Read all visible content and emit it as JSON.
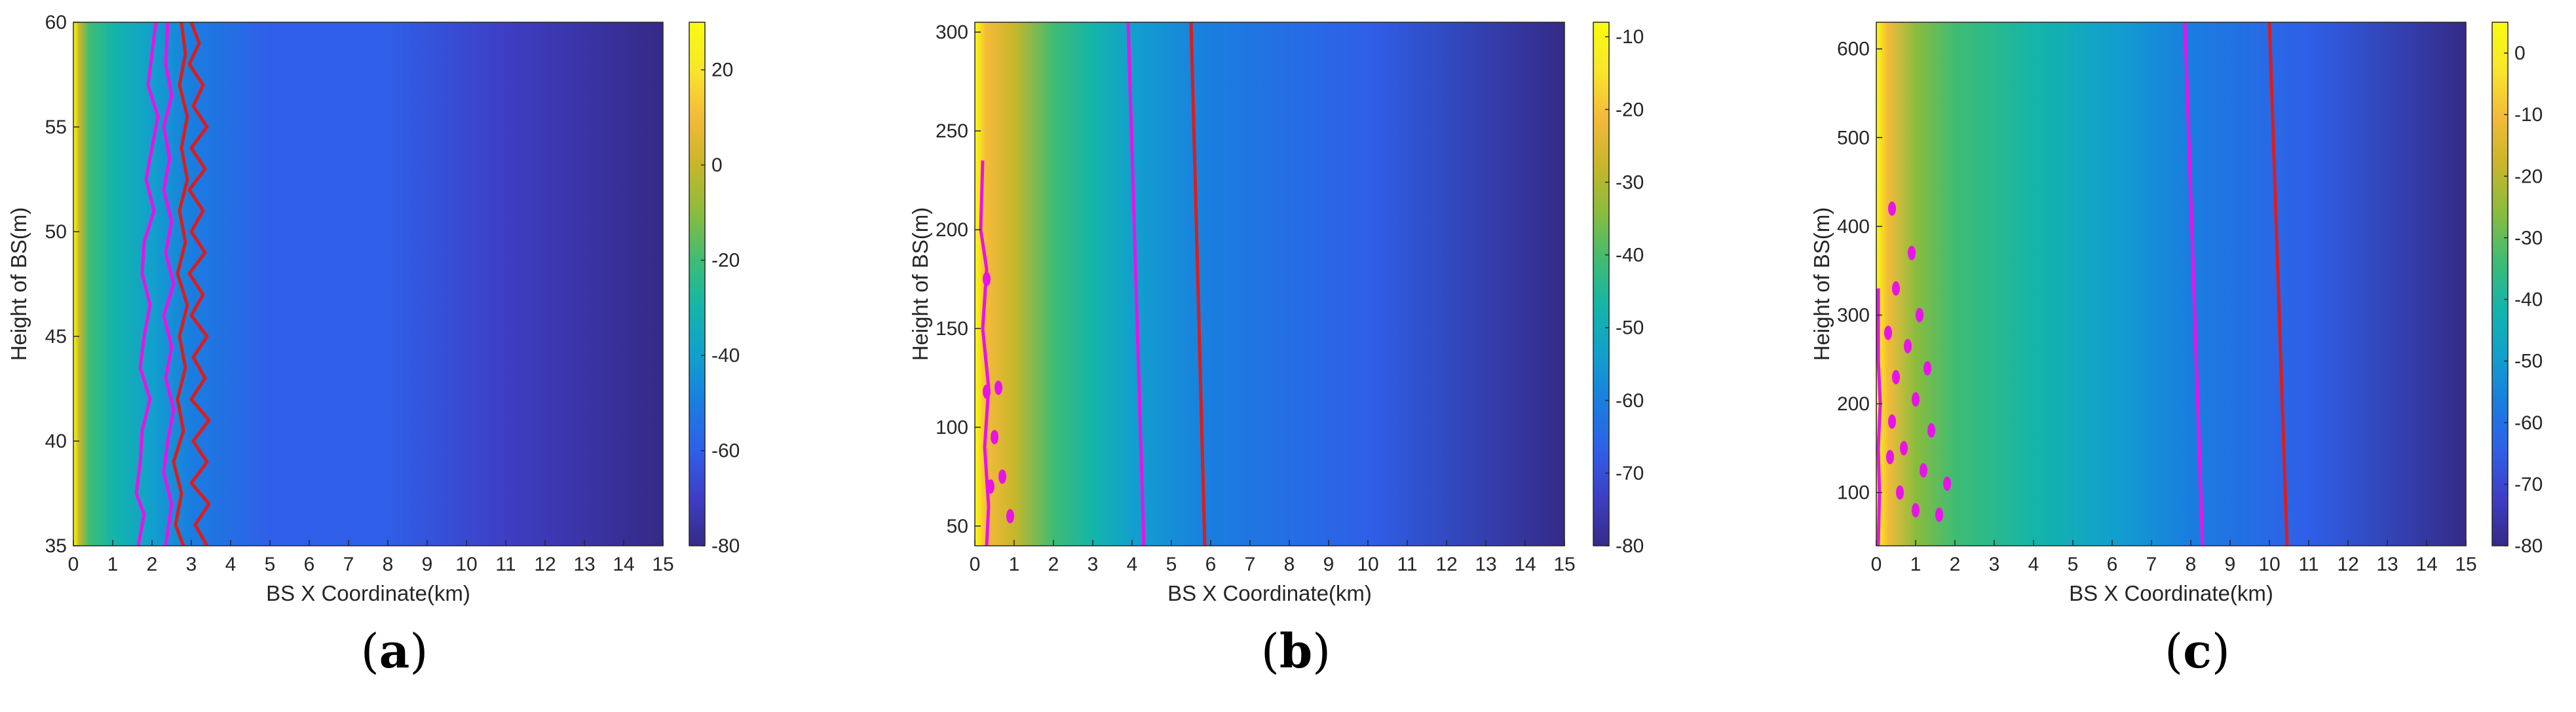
{
  "panels": [
    {
      "caption": "(a)",
      "caption_letter": "a",
      "chart_data": {
        "type": "heatmap",
        "xlabel": "BS X Coordinate(km)",
        "ylabel": "Height of BS(m)",
        "xlim": [
          0,
          15
        ],
        "ylim": [
          35,
          60
        ],
        "xticks": [
          0,
          1,
          2,
          3,
          4,
          5,
          6,
          7,
          8,
          9,
          10,
          11,
          12,
          13,
          14,
          15
        ],
        "yticks": [
          35,
          40,
          45,
          50,
          55,
          60
        ],
        "colorbar": {
          "min": -80,
          "max": 30,
          "ticks": [
            -80,
            -60,
            -40,
            -20,
            0,
            20
          ]
        },
        "field_profile": [
          [
            0,
            30
          ],
          [
            0.15,
            0
          ],
          [
            0.4,
            -20
          ],
          [
            1,
            -30
          ],
          [
            2,
            -38
          ],
          [
            3,
            -48
          ],
          [
            5,
            -58
          ],
          [
            8,
            -64
          ],
          [
            11,
            -70
          ],
          [
            15,
            -80
          ]
        ],
        "contours": [
          {
            "color": "#e813e8",
            "points": [
              [
                2.1,
                60
              ],
              [
                2.0,
                58.5
              ],
              [
                1.9,
                57
              ],
              [
                2.15,
                55.5
              ],
              [
                2.0,
                54
              ],
              [
                1.85,
                52.5
              ],
              [
                2.05,
                51
              ],
              [
                1.8,
                49.5
              ],
              [
                1.75,
                48
              ],
              [
                1.95,
                46.5
              ],
              [
                1.8,
                45
              ],
              [
                1.7,
                43.5
              ],
              [
                1.95,
                42
              ],
              [
                1.75,
                40.5
              ],
              [
                1.7,
                39
              ],
              [
                1.6,
                37.5
              ],
              [
                1.8,
                36.5
              ],
              [
                1.65,
                35
              ]
            ]
          },
          {
            "color": "#e813e8",
            "points": [
              [
                2.4,
                60
              ],
              [
                2.35,
                58
              ],
              [
                2.5,
                56.5
              ],
              [
                2.3,
                55
              ],
              [
                2.45,
                53.5
              ],
              [
                2.3,
                52
              ],
              [
                2.5,
                50.5
              ],
              [
                2.35,
                49
              ],
              [
                2.55,
                47.5
              ],
              [
                2.3,
                46
              ],
              [
                2.5,
                44.5
              ],
              [
                2.35,
                43
              ],
              [
                2.55,
                41.5
              ],
              [
                2.4,
                40
              ],
              [
                2.3,
                38.5
              ],
              [
                2.5,
                37
              ],
              [
                2.35,
                35
              ]
            ]
          },
          {
            "color": "#dd1c1c",
            "points": [
              [
                3.0,
                60
              ],
              [
                3.2,
                59
              ],
              [
                2.95,
                58
              ],
              [
                3.3,
                57
              ],
              [
                3.05,
                56
              ],
              [
                3.4,
                55
              ],
              [
                3.0,
                54
              ],
              [
                3.35,
                53
              ],
              [
                2.95,
                52
              ],
              [
                3.3,
                51
              ],
              [
                3.0,
                50
              ],
              [
                3.35,
                49
              ],
              [
                2.95,
                48
              ],
              [
                3.3,
                47
              ],
              [
                3.0,
                46
              ],
              [
                3.4,
                45
              ],
              [
                3.05,
                44
              ],
              [
                3.35,
                43
              ],
              [
                3.0,
                42
              ],
              [
                3.45,
                41
              ],
              [
                3.05,
                40
              ],
              [
                3.4,
                39
              ],
              [
                3.0,
                38
              ],
              [
                3.45,
                37
              ],
              [
                3.1,
                36
              ],
              [
                3.4,
                35
              ]
            ]
          },
          {
            "color": "#dd1c1c",
            "points": [
              [
                2.75,
                60
              ],
              [
                2.85,
                58.5
              ],
              [
                2.7,
                57
              ],
              [
                2.9,
                55.5
              ],
              [
                2.75,
                54
              ],
              [
                2.9,
                52.5
              ],
              [
                2.7,
                51
              ],
              [
                2.85,
                49.5
              ],
              [
                2.65,
                48
              ],
              [
                2.9,
                46.5
              ],
              [
                2.7,
                45
              ],
              [
                2.85,
                43.5
              ],
              [
                2.65,
                42
              ],
              [
                2.8,
                40.5
              ],
              [
                2.55,
                39
              ],
              [
                2.75,
                37.5
              ],
              [
                2.6,
                36
              ],
              [
                2.8,
                35
              ]
            ]
          }
        ]
      }
    },
    {
      "caption": "(b)",
      "caption_letter": "b",
      "chart_data": {
        "type": "heatmap",
        "xlabel": "BS X Coordinate(km)",
        "ylabel": "Height of BS(m)",
        "xlim": [
          0,
          15
        ],
        "ylim": [
          40,
          305
        ],
        "xticks": [
          0,
          1,
          2,
          3,
          4,
          5,
          6,
          7,
          8,
          9,
          10,
          11,
          12,
          13,
          14,
          15
        ],
        "yticks": [
          50,
          100,
          150,
          200,
          250,
          300
        ],
        "colorbar": {
          "min": -80,
          "max": -8,
          "ticks": [
            -80,
            -70,
            -60,
            -50,
            -40,
            -30,
            -20,
            -10
          ]
        },
        "field_profile": [
          [
            0,
            -8
          ],
          [
            0.3,
            -18
          ],
          [
            1,
            -30
          ],
          [
            2,
            -40
          ],
          [
            3,
            -47
          ],
          [
            4,
            -53
          ],
          [
            6,
            -58
          ],
          [
            10,
            -68
          ],
          [
            15,
            -80
          ]
        ],
        "contours": [
          {
            "color": "#e813e8",
            "points": [
              [
                3.9,
                305
              ],
              [
                4.3,
                40
              ]
            ]
          },
          {
            "color": "#dd1c1c",
            "points": [
              [
                5.5,
                305
              ],
              [
                5.85,
                40
              ]
            ]
          },
          {
            "color": "#e813e8",
            "points": [
              [
                0.2,
                235
              ],
              [
                0.15,
                200
              ],
              [
                0.3,
                180
              ],
              [
                0.2,
                150
              ],
              [
                0.35,
                120
              ],
              [
                0.25,
                90
              ],
              [
                0.35,
                60
              ],
              [
                0.3,
                40
              ]
            ]
          }
        ],
        "blobs": [
          [
            0.3,
            175
          ],
          [
            0.6,
            120
          ],
          [
            0.3,
            118
          ],
          [
            0.5,
            95
          ],
          [
            0.7,
            75
          ],
          [
            0.4,
            70
          ],
          [
            0.9,
            55
          ]
        ]
      }
    },
    {
      "caption": "(c)",
      "caption_letter": "c",
      "chart_data": {
        "type": "heatmap",
        "xlabel": "BS X Coordinate(km)",
        "ylabel": "Height of BS(m)",
        "xlim": [
          0,
          15
        ],
        "ylim": [
          40,
          630
        ],
        "xticks": [
          0,
          1,
          2,
          3,
          4,
          5,
          6,
          7,
          8,
          9,
          10,
          11,
          12,
          13,
          14,
          15
        ],
        "yticks": [
          100,
          200,
          300,
          400,
          500,
          600
        ],
        "colorbar": {
          "min": -80,
          "max": 5,
          "ticks": [
            -80,
            -70,
            -60,
            -50,
            -40,
            -30,
            -20,
            -10,
            0
          ]
        },
        "field_profile": [
          [
            0,
            5
          ],
          [
            0.3,
            -10
          ],
          [
            1,
            -25
          ],
          [
            2,
            -35
          ],
          [
            4,
            -45
          ],
          [
            6,
            -52
          ],
          [
            8,
            -57
          ],
          [
            11,
            -65
          ],
          [
            15,
            -80
          ]
        ],
        "contours": [
          {
            "color": "#e813e8",
            "points": [
              [
                7.85,
                630
              ],
              [
                8.3,
                40
              ]
            ]
          },
          {
            "color": "#dd1c1c",
            "points": [
              [
                10.0,
                630
              ],
              [
                10.45,
                40
              ]
            ]
          },
          {
            "color": "#e813e8",
            "points": [
              [
                0.05,
                330
              ],
              [
                0.05,
                250
              ],
              [
                0.1,
                200
              ],
              [
                0.05,
                150
              ],
              [
                0.08,
                100
              ],
              [
                0.05,
                40
              ]
            ]
          }
        ],
        "blobs": [
          [
            0.4,
            420
          ],
          [
            0.9,
            370
          ],
          [
            0.5,
            330
          ],
          [
            1.1,
            300
          ],
          [
            0.3,
            280
          ],
          [
            0.8,
            265
          ],
          [
            1.3,
            240
          ],
          [
            0.5,
            230
          ],
          [
            1.0,
            205
          ],
          [
            0.4,
            180
          ],
          [
            1.4,
            170
          ],
          [
            0.7,
            150
          ],
          [
            0.35,
            140
          ],
          [
            1.2,
            125
          ],
          [
            1.8,
            110
          ],
          [
            0.6,
            100
          ],
          [
            1.0,
            80
          ],
          [
            1.6,
            75
          ]
        ]
      }
    }
  ]
}
